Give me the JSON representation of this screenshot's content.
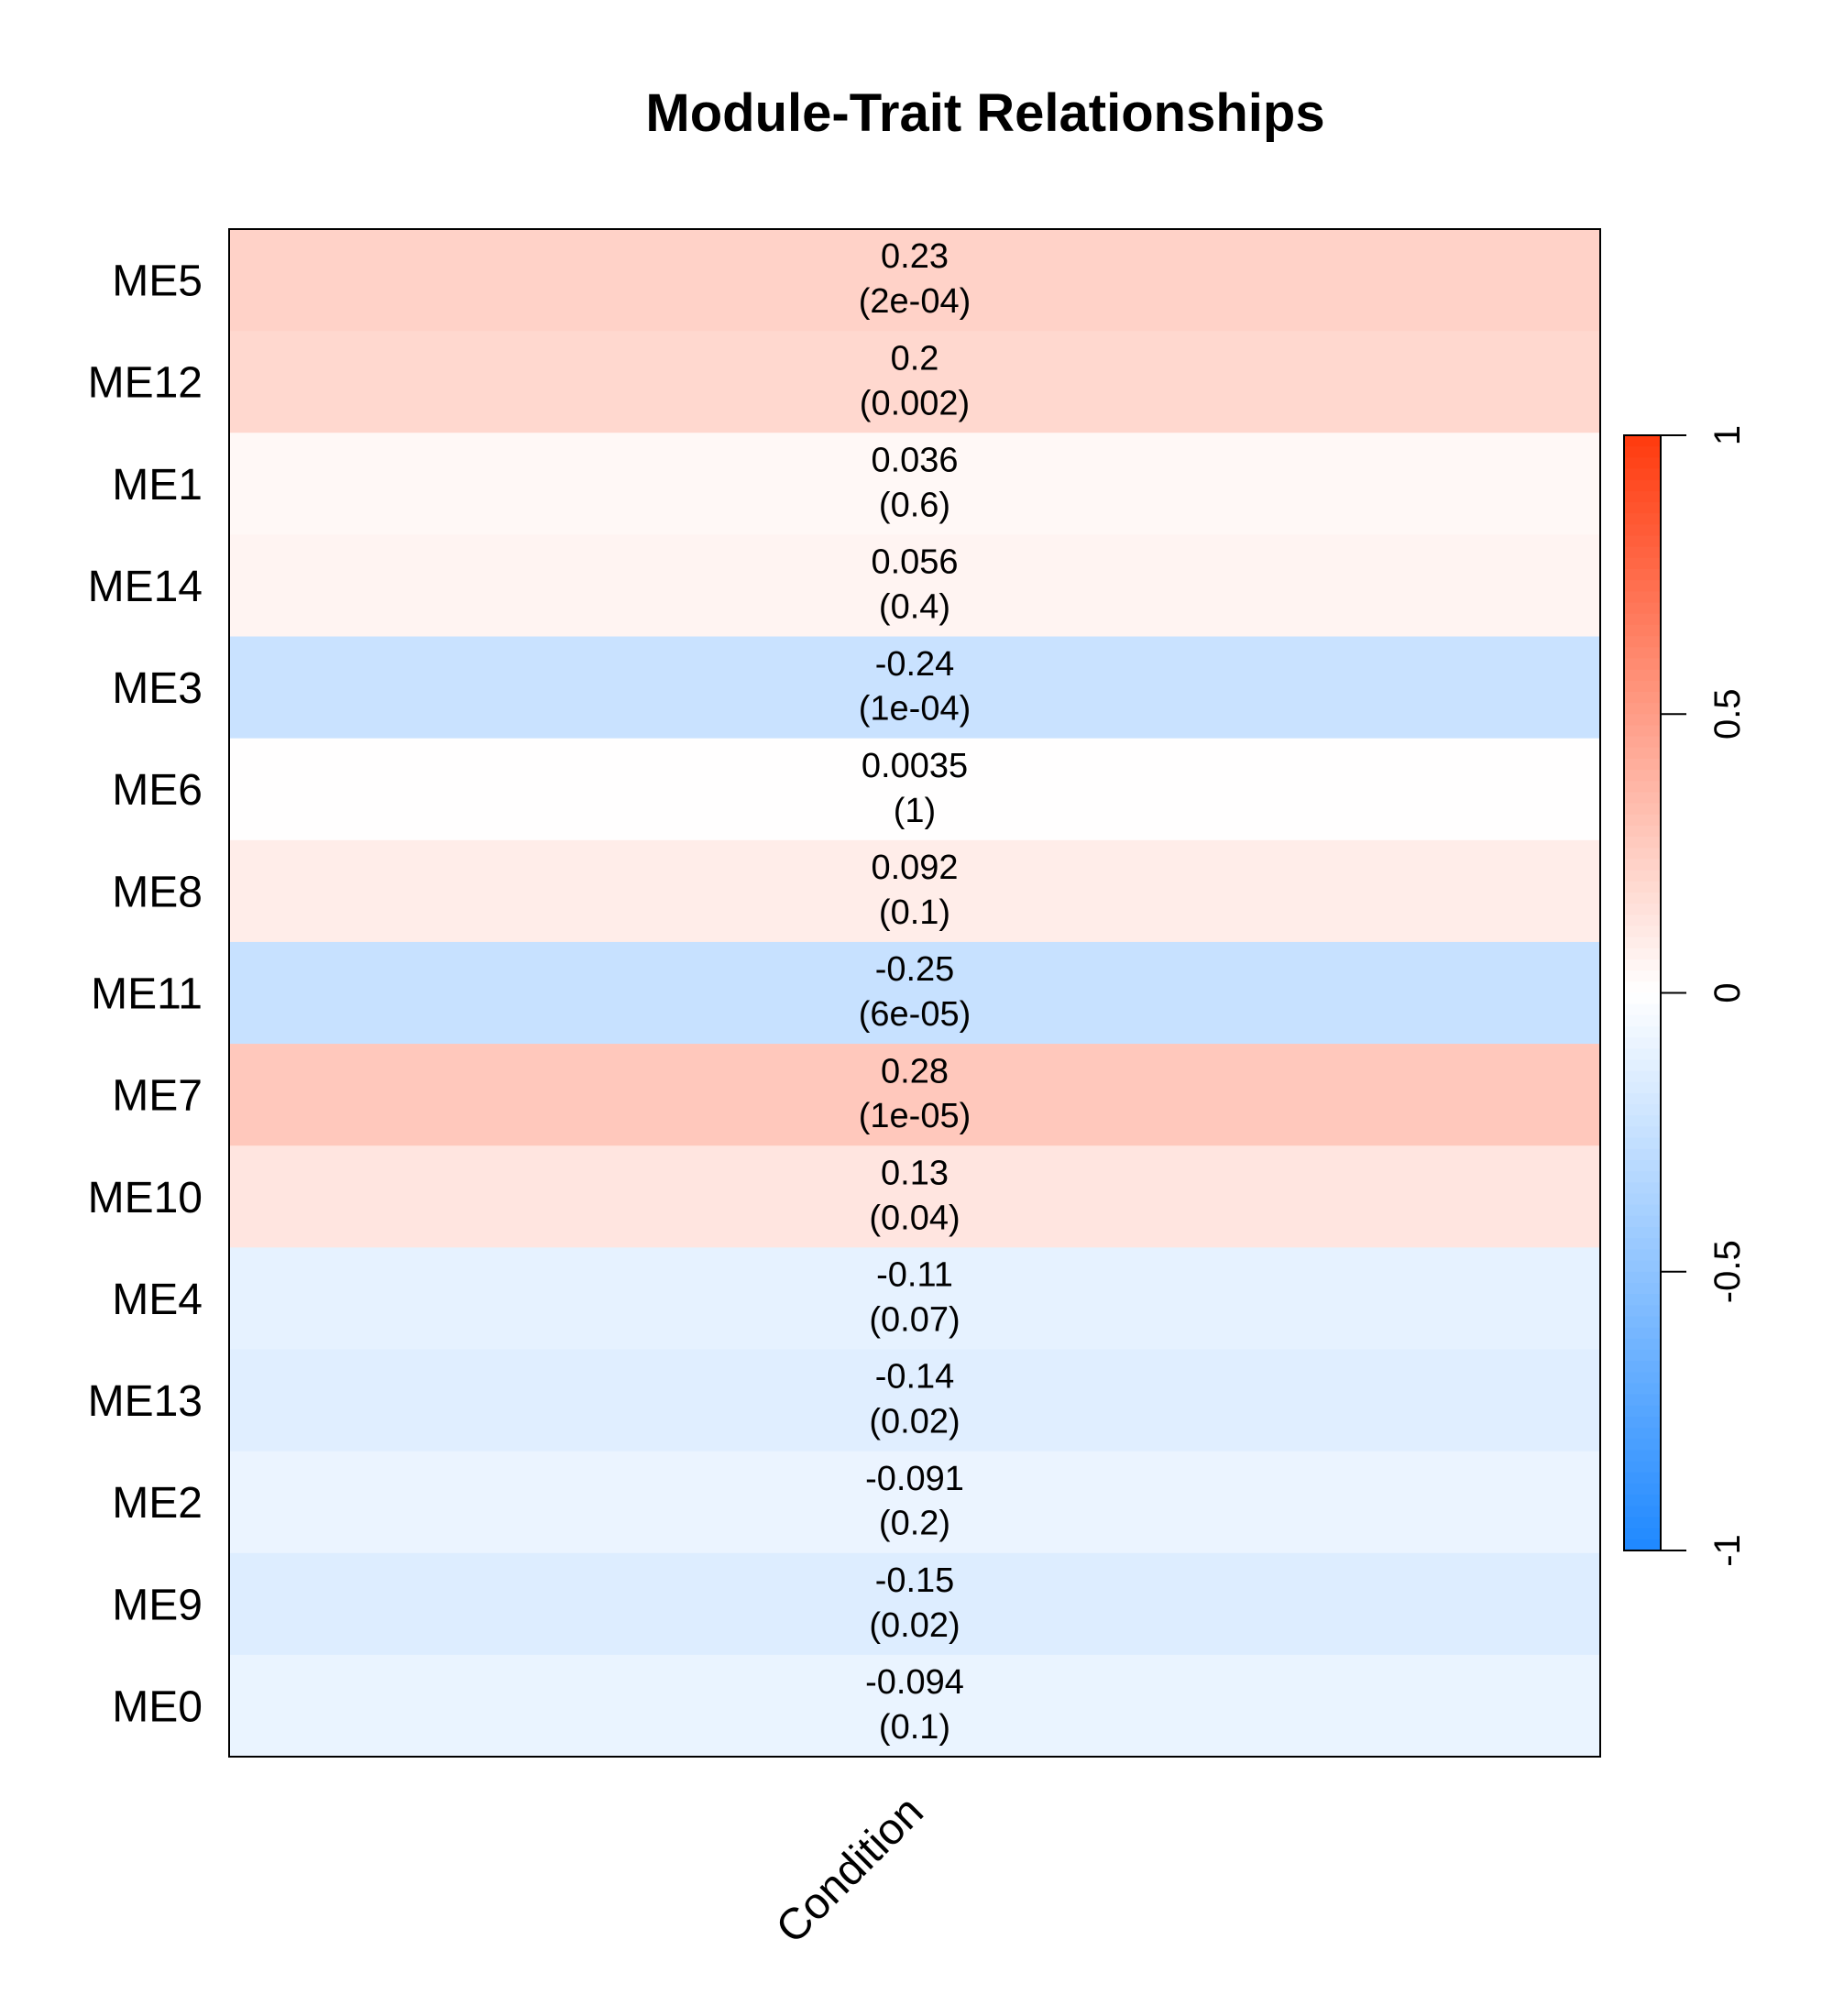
{
  "chart_data": {
    "type": "heatmap",
    "title": "Module-Trait Relationships",
    "columns": [
      "Condition"
    ],
    "rows": [
      "ME5",
      "ME12",
      "ME1",
      "ME14",
      "ME3",
      "ME6",
      "ME8",
      "ME11",
      "ME7",
      "ME10",
      "ME4",
      "ME13",
      "ME2",
      "ME9",
      "ME0"
    ],
    "values": [
      0.23,
      0.2,
      0.036,
      0.056,
      -0.24,
      0.0035,
      0.092,
      -0.25,
      0.28,
      0.13,
      -0.11,
      -0.14,
      -0.091,
      -0.15,
      -0.094
    ],
    "value_labels": [
      "0.23",
      "0.2",
      "0.036",
      "0.056",
      "-0.24",
      "0.0035",
      "0.092",
      "-0.25",
      "0.28",
      "0.13",
      "-0.11",
      "-0.14",
      "-0.091",
      "-0.15",
      "-0.094"
    ],
    "pvalue_labels": [
      "(2e-04)",
      "(0.002)",
      "(0.6)",
      "(0.4)",
      "(1e-04)",
      "(1)",
      "(0.1)",
      "(6e-05)",
      "(1e-05)",
      "(0.04)",
      "(0.07)",
      "(0.02)",
      "(0.2)",
      "(0.02)",
      "(0.1)"
    ],
    "colorbar": {
      "range": [
        -1,
        1
      ],
      "ticks": [
        1,
        0.5,
        0,
        -0.5,
        -1
      ],
      "tick_labels": [
        "1",
        "0.5",
        "0",
        "-0.5",
        "-1"
      ],
      "low_color": "#1E88FF",
      "mid_color": "#FFFFFF",
      "high_color": "#FF3A0E"
    }
  }
}
